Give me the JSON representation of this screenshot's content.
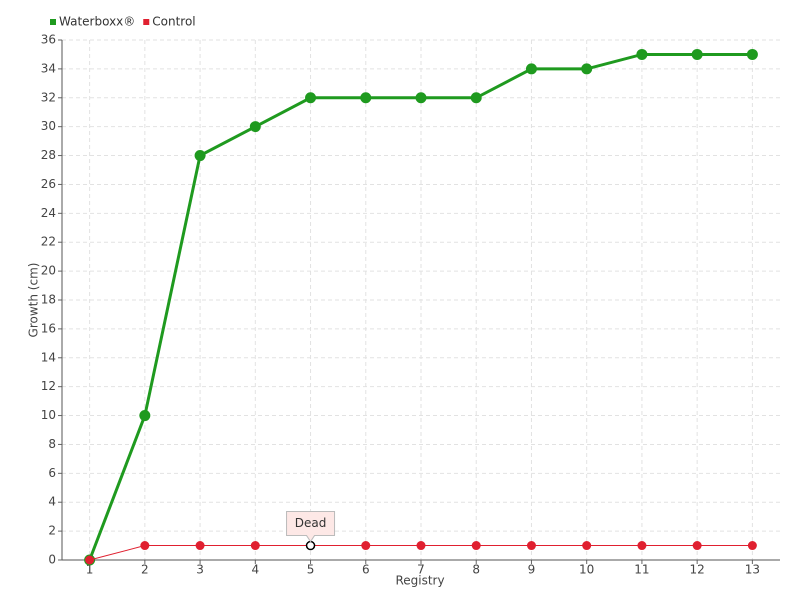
{
  "chart_data": {
    "type": "line",
    "x_label": "Registry",
    "y_label": "Growth (cm)",
    "categories": [
      "1",
      "2",
      "3",
      "4",
      "5",
      "6",
      "7",
      "8",
      "9",
      "10",
      "11",
      "12",
      "13"
    ],
    "series": [
      {
        "name": "Waterboxx®",
        "color": "#1f9a1f",
        "values": [
          0,
          10,
          28,
          30,
          32,
          32,
          32,
          32,
          34,
          34,
          35,
          35,
          35
        ]
      },
      {
        "name": "Control",
        "color": "#e02030",
        "values": [
          0,
          1,
          1,
          1,
          1,
          1,
          1,
          1,
          1,
          1,
          1,
          1,
          1
        ]
      }
    ],
    "annotation": {
      "text": "Dead",
      "series": "Control",
      "category": "5"
    },
    "ylim": [
      0,
      36
    ],
    "yticks": [
      0,
      2,
      4,
      6,
      8,
      10,
      12,
      14,
      16,
      18,
      20,
      22,
      24,
      26,
      28,
      30,
      32,
      34,
      36
    ],
    "grid": true,
    "legend": "top-left"
  }
}
